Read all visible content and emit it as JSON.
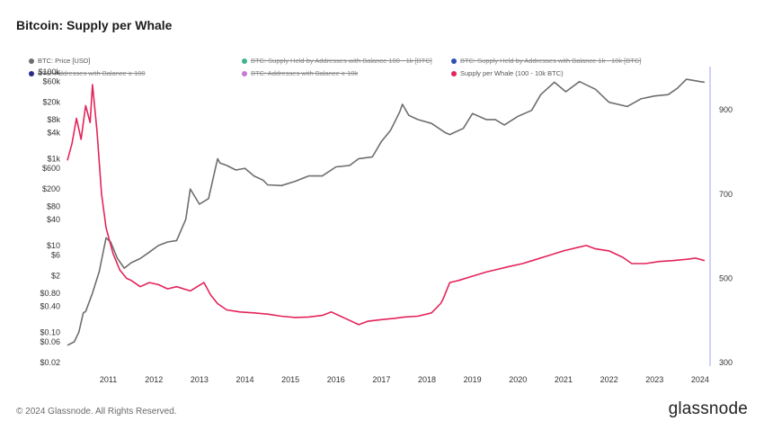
{
  "title": "Bitcoin: Supply per Whale",
  "footer": "© 2024 Glassnode. All Rights Reserved.",
  "brand": "glassnode",
  "legend": [
    {
      "label": "BTC: Price [USD]",
      "color": "#6e6e6e",
      "enabled": true
    },
    {
      "label": "BTC: Supply Held by Addresses with Balance 100 - 1k [BTC]",
      "color": "#3fb58a",
      "enabled": false
    },
    {
      "label": "BTC: Supply Held by Addresses with Balance 1k - 10k [BTC]",
      "color": "#2e4fb5",
      "enabled": false
    },
    {
      "label": "BTC: Addresses with Balance ≥ 100",
      "color": "#2a2a8a",
      "enabled": false
    },
    {
      "label": "BTC: Addresses with Balance ≥ 10k",
      "color": "#c57ad1",
      "enabled": false
    },
    {
      "label": "Supply per Whale (100 - 10k BTC)",
      "color": "#e3245a",
      "enabled": true
    }
  ],
  "chart_data": {
    "type": "line",
    "title": "Bitcoin: Supply per Whale",
    "x_ticks": [
      "2011",
      "2012",
      "2013",
      "2014",
      "2015",
      "2016",
      "2017",
      "2018",
      "2019",
      "2020",
      "2021",
      "2022",
      "2023",
      "2024"
    ],
    "y_left": {
      "scale": "log",
      "ticks": [
        "$100k",
        "$60k",
        "$20k",
        "$8k",
        "$4k",
        "$1k",
        "$600",
        "$200",
        "$80",
        "$40",
        "$10",
        "$6",
        "$2",
        "$0.80",
        "$0.40",
        "$0.10",
        "$0.06",
        "$0.02"
      ],
      "tick_values": [
        100000,
        60000,
        20000,
        8000,
        4000,
        1000,
        600,
        200,
        80,
        40,
        10,
        6,
        2,
        0.8,
        0.4,
        0.1,
        0.06,
        0.02
      ],
      "range": [
        0.02,
        100000
      ]
    },
    "y_right": {
      "scale": "linear",
      "ticks": [
        "900",
        "700",
        "500",
        "300"
      ],
      "tick_values": [
        900,
        700,
        500,
        300
      ],
      "range": [
        300,
        990
      ]
    },
    "series": [
      {
        "name": "BTC: Price [USD]",
        "axis": "left",
        "color": "#6e6e6e",
        "x": [
          2010.6,
          2010.75,
          2010.85,
          2010.95,
          2011.0,
          2011.15,
          2011.3,
          2011.45,
          2011.55,
          2011.7,
          2011.85,
          2012.0,
          2012.2,
          2012.4,
          2012.6,
          2012.8,
          2013.0,
          2013.2,
          2013.3,
          2013.5,
          2013.7,
          2013.9,
          2013.95,
          2014.1,
          2014.3,
          2014.5,
          2014.7,
          2014.9,
          2015.0,
          2015.3,
          2015.6,
          2015.9,
          2016.2,
          2016.5,
          2016.8,
          2017.0,
          2017.3,
          2017.5,
          2017.7,
          2017.9,
          2017.96,
          2018.1,
          2018.3,
          2018.6,
          2018.9,
          2019.0,
          2019.3,
          2019.5,
          2019.8,
          2020.0,
          2020.2,
          2020.5,
          2020.8,
          2021.0,
          2021.3,
          2021.55,
          2021.85,
          2022.2,
          2022.5,
          2022.9,
          2023.2,
          2023.5,
          2023.8,
          2024.0,
          2024.2,
          2024.5,
          2024.6
        ],
        "y": [
          0.05,
          0.06,
          0.1,
          0.28,
          0.3,
          0.8,
          2.5,
          15,
          12,
          5,
          3,
          4,
          5,
          7,
          10,
          12,
          13,
          40,
          200,
          90,
          120,
          1000,
          800,
          700,
          550,
          600,
          400,
          320,
          250,
          240,
          300,
          400,
          400,
          650,
          700,
          1000,
          1100,
          2500,
          4500,
          12000,
          18000,
          10000,
          8000,
          6500,
          4000,
          3600,
          5000,
          11000,
          8000,
          8000,
          6000,
          9500,
          13000,
          30000,
          58000,
          35000,
          60000,
          40000,
          20000,
          16000,
          24000,
          28000,
          30000,
          42000,
          68000,
          60000,
          58000
        ]
      },
      {
        "name": "Supply per Whale (100 - 10k BTC)",
        "axis": "right",
        "color": "#e3245a",
        "x": [
          2010.6,
          2010.7,
          2010.8,
          2010.9,
          2011.0,
          2011.1,
          2011.15,
          2011.25,
          2011.35,
          2011.45,
          2011.6,
          2011.75,
          2011.9,
          2012.0,
          2012.2,
          2012.4,
          2012.6,
          2012.8,
          2013.0,
          2013.3,
          2013.6,
          2013.75,
          2013.9,
          2014.1,
          2014.4,
          2014.7,
          2015.0,
          2015.3,
          2015.6,
          2015.9,
          2016.2,
          2016.4,
          2016.6,
          2016.8,
          2017.0,
          2017.2,
          2017.5,
          2017.8,
          2018.0,
          2018.3,
          2018.6,
          2018.8,
          2018.85,
          2019.0,
          2019.2,
          2019.5,
          2019.8,
          2020.0,
          2020.3,
          2020.6,
          2020.9,
          2021.2,
          2021.5,
          2021.8,
          2022.0,
          2022.2,
          2022.5,
          2022.8,
          2023.0,
          2023.3,
          2023.6,
          2023.9,
          2024.2,
          2024.4,
          2024.6
        ],
        "y": [
          780,
          820,
          880,
          830,
          910,
          870,
          960,
          850,
          700,
          620,
          560,
          520,
          500,
          495,
          480,
          490,
          485,
          475,
          480,
          470,
          490,
          460,
          440,
          425,
          420,
          418,
          415,
          410,
          407,
          408,
          412,
          420,
          410,
          400,
          390,
          398,
          402,
          405,
          408,
          410,
          418,
          440,
          450,
          490,
          495,
          505,
          515,
          520,
          528,
          535,
          545,
          555,
          565,
          573,
          578,
          570,
          565,
          550,
          535,
          535,
          540,
          542,
          545,
          548,
          542
        ]
      }
    ]
  }
}
